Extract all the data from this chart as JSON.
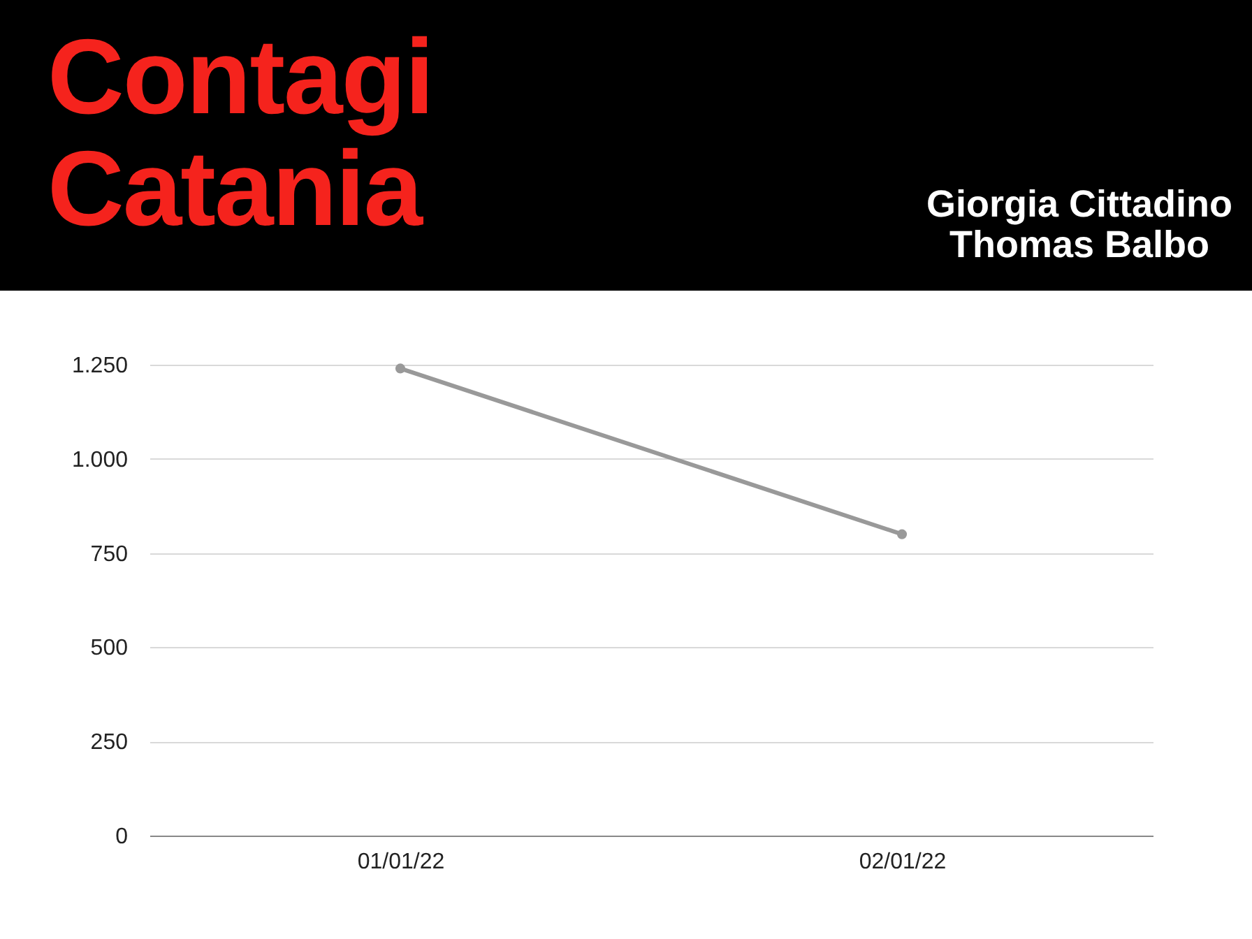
{
  "chart_data": {
    "type": "line",
    "title": "Contagi Catania",
    "annotations": [
      "Giorgia Cittadino",
      "Thomas Balbo"
    ],
    "categories": [
      "01/01/22",
      "02/01/22"
    ],
    "series": [
      {
        "color": "#999999",
        "values": [
          1240,
          800
        ]
      }
    ],
    "ylim": [
      0,
      1250
    ],
    "yticks": [
      0,
      250,
      500,
      750,
      {
        "value": 1000,
        "label": "1.000"
      },
      {
        "value": 1250,
        "label": "1.250"
      }
    ],
    "grid": "y",
    "marker": "circle",
    "line_style": "solid"
  }
}
